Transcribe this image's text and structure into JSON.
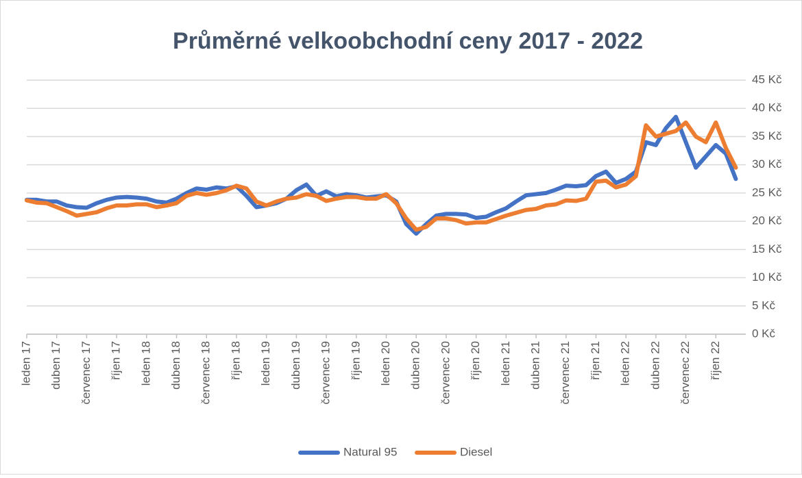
{
  "chart_data": {
    "type": "line",
    "title": "Průměrné velkoobchodní ceny 2017 - 2022",
    "categories": [
      "leden 17",
      null,
      null,
      "duben 17",
      null,
      null,
      "červenec 17",
      null,
      null,
      "říjen 17",
      null,
      null,
      "leden 18",
      null,
      null,
      "duben 18",
      null,
      null,
      "červenec 18",
      null,
      null,
      "říjen 18",
      null,
      null,
      "leden 19",
      null,
      null,
      "duben 19",
      null,
      null,
      "červenec 19",
      null,
      null,
      "říjen 19",
      null,
      null,
      "leden 20",
      null,
      null,
      "duben 20",
      null,
      null,
      "červenec 20",
      null,
      null,
      "říjen 20",
      null,
      null,
      "leden 21",
      null,
      null,
      "duben 21",
      null,
      null,
      "červenec 21",
      null,
      null,
      "říjen 21",
      null,
      null,
      "leden 22",
      null,
      null,
      "duben 22",
      null,
      null,
      "červenec 22",
      null,
      null,
      "říjen 22",
      null,
      null
    ],
    "series": [
      {
        "name": "Natural 95",
        "color": "#4472c4",
        "values": [
          23.8,
          23.8,
          23.5,
          23.5,
          22.8,
          22.5,
          22.4,
          23.2,
          23.8,
          24.2,
          24.3,
          24.2,
          24.0,
          23.5,
          23.3,
          24.0,
          25.0,
          25.8,
          25.6,
          26.0,
          25.8,
          26.2,
          24.5,
          22.5,
          22.8,
          23.2,
          24.0,
          25.5,
          26.5,
          24.5,
          25.3,
          24.4,
          24.8,
          24.6,
          24.2,
          24.4,
          24.6,
          23.5,
          19.5,
          17.8,
          19.5,
          21.0,
          21.3,
          21.3,
          21.2,
          20.6,
          20.8,
          21.6,
          22.3,
          23.5,
          24.6,
          24.8,
          25.0,
          25.6,
          26.3,
          26.2,
          26.4,
          28.0,
          28.8,
          26.8,
          27.5,
          28.8,
          34.0,
          33.5,
          36.5,
          38.5,
          34.0,
          29.5,
          31.5,
          33.5,
          32.0,
          27.5
        ]
      },
      {
        "name": "Diesel",
        "color": "#ed7d31",
        "values": [
          23.7,
          23.3,
          23.2,
          22.5,
          21.8,
          21.0,
          21.3,
          21.6,
          22.3,
          22.8,
          22.8,
          23.0,
          23.0,
          22.5,
          22.8,
          23.2,
          24.5,
          25.0,
          24.7,
          25.0,
          25.5,
          26.3,
          25.8,
          23.5,
          22.8,
          23.5,
          24.0,
          24.2,
          24.8,
          24.5,
          23.6,
          24.0,
          24.3,
          24.3,
          24.0,
          24.0,
          24.8,
          23.2,
          20.5,
          18.5,
          19.0,
          20.5,
          20.5,
          20.2,
          19.6,
          19.8,
          19.8,
          20.4,
          21.0,
          21.5,
          22.0,
          22.2,
          22.8,
          23.0,
          23.7,
          23.6,
          24.0,
          27.0,
          27.2,
          26.0,
          26.5,
          28.0,
          37.0,
          35.0,
          35.5,
          36.0,
          37.5,
          35.0,
          34.0,
          37.5,
          33.0,
          29.5
        ]
      }
    ],
    "ylim": [
      0,
      45
    ],
    "yticks": [
      {
        "value": 0,
        "label": "0 Kč"
      },
      {
        "value": 5,
        "label": "5 Kč"
      },
      {
        "value": 10,
        "label": "10 Kč"
      },
      {
        "value": 15,
        "label": "15 Kč"
      },
      {
        "value": 20,
        "label": "20 Kč"
      },
      {
        "value": 25,
        "label": "25 Kč"
      },
      {
        "value": 30,
        "label": "30 Kč"
      },
      {
        "value": 35,
        "label": "35 Kč"
      },
      {
        "value": 40,
        "label": "40 Kč"
      },
      {
        "value": 45,
        "label": "45 Kč"
      }
    ],
    "grid": true,
    "legend": "bottom"
  }
}
